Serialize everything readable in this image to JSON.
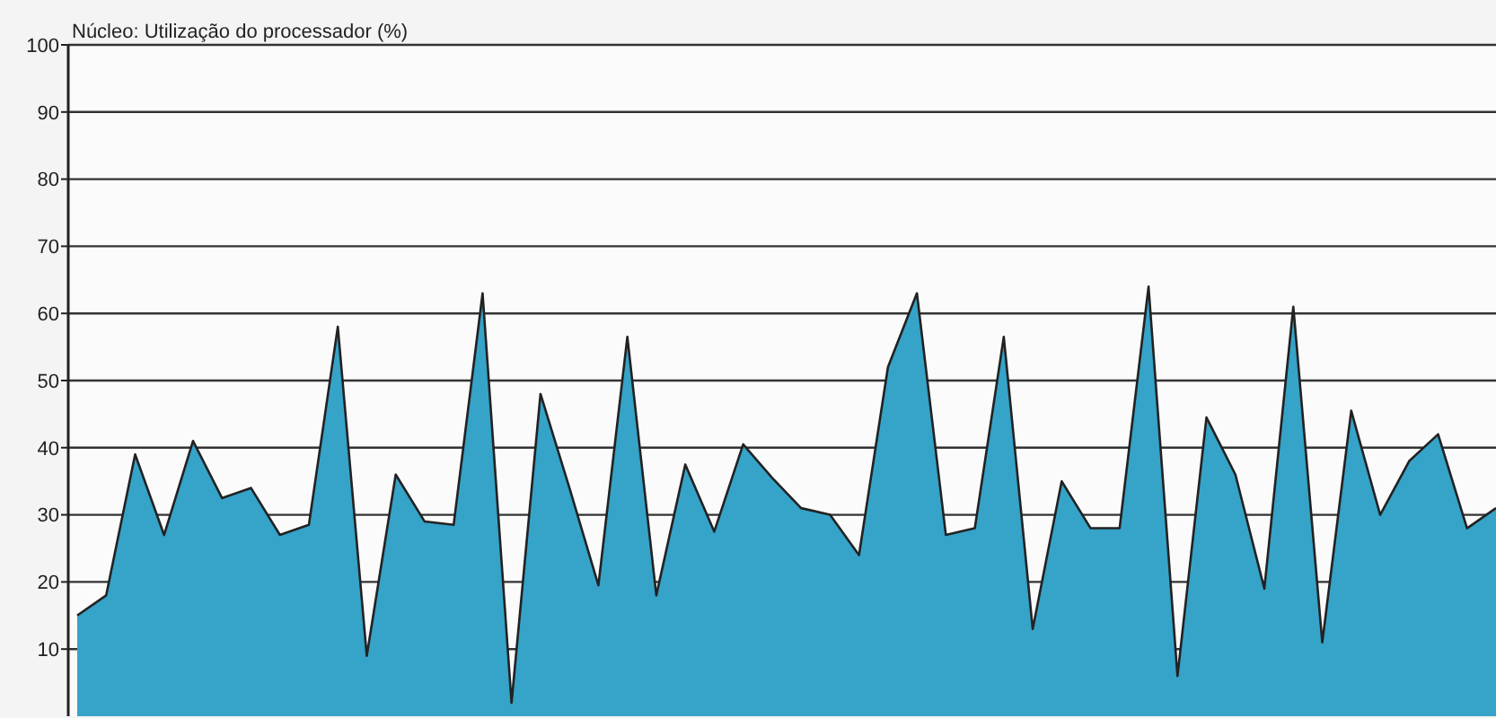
{
  "chart_data": {
    "type": "area",
    "title": "Núcleo: Utilização do processador (%)",
    "categories": [
      null,
      null,
      null,
      null,
      null,
      null,
      null,
      null,
      null,
      null,
      null,
      null,
      null,
      null,
      null,
      null,
      null,
      null,
      null,
      null,
      null,
      null,
      null,
      null,
      null,
      null,
      null,
      null,
      null,
      null,
      null,
      null,
      null,
      null,
      null,
      null,
      null,
      null,
      null,
      null,
      null,
      null,
      null,
      null,
      null,
      null,
      null,
      null,
      null,
      null
    ],
    "series": [
      {
        "color": "#36a3c8",
        "values": [
          15,
          18,
          39,
          27,
          41,
          32.5,
          34,
          27,
          28.5,
          58,
          9,
          36,
          29,
          28.5,
          63,
          2,
          48,
          34,
          19.5,
          56.5,
          18,
          37.5,
          27.5,
          40.5,
          35.5,
          31,
          30,
          24,
          52,
          63,
          27,
          28,
          56.5,
          13,
          35,
          28,
          28,
          64,
          6,
          44.5,
          36,
          19,
          61,
          11,
          45.5,
          30,
          38,
          42,
          28,
          31
        ]
      }
    ],
    "ylim": [
      0,
      100
    ],
    "yticks": [
      10,
      20,
      30,
      40,
      50,
      60,
      70,
      80,
      90,
      100
    ],
    "grid": "y",
    "tick_labels": "y"
  }
}
